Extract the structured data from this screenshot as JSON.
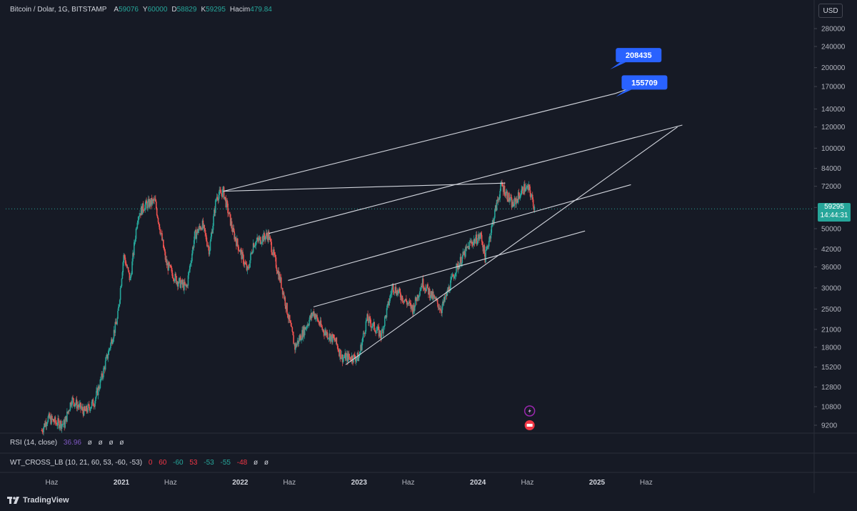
{
  "legend": {
    "symbol": "Bitcoin / Dolar, 1G, BITSTAMP",
    "open_label": "A",
    "open": "59076",
    "high_label": "Y",
    "high": "60000",
    "low_label": "D",
    "low": "58829",
    "close_label": "K",
    "close": "59295",
    "volume_label": "Hacim",
    "volume": "479.84"
  },
  "currency": "USD",
  "last_price": {
    "value": "59295",
    "countdown": "14:44:31"
  },
  "indicators": {
    "rsi": {
      "label": "RSI (14, close)",
      "value": "36.96",
      "extras": [
        "ø",
        "ø",
        "ø",
        "ø"
      ]
    },
    "wt": {
      "label": "WT_CROSS_LB (10, 21, 60, 53, -60, -53)",
      "values": [
        "0",
        "60",
        "-60",
        "53",
        "-53",
        "-55",
        "-48",
        "ø",
        "ø"
      ],
      "colors": [
        "#f23645",
        "#f23645",
        "#26a69a",
        "#f23645",
        "#26a69a",
        "#26a69a",
        "#f23645",
        "#d1d4dc",
        "#d1d4dc"
      ]
    }
  },
  "brand": "TradingView",
  "colors": {
    "up": "#26a69a",
    "down": "#ef5350",
    "line": "#d1d4dc",
    "callout": "#2962ff",
    "background": "#161a25"
  },
  "chart_data": {
    "type": "candlestick",
    "y_scale": "log",
    "y_ticks": [
      280000,
      240000,
      200000,
      170000,
      140000,
      120000,
      100000,
      84000,
      72000,
      60000,
      50000,
      42000,
      36000,
      30000,
      25000,
      21000,
      18000,
      15200,
      12800,
      10800,
      9200
    ],
    "x_ticks": [
      {
        "label": "Haz",
        "date": "2020-06"
      },
      {
        "label": "2021",
        "date": "2021-01"
      },
      {
        "label": "Haz",
        "date": "2021-06"
      },
      {
        "label": "2022",
        "date": "2022-01"
      },
      {
        "label": "Haz",
        "date": "2022-06"
      },
      {
        "label": "2023",
        "date": "2023-01"
      },
      {
        "label": "Haz",
        "date": "2023-06"
      },
      {
        "label": "2024",
        "date": "2024-01"
      },
      {
        "label": "Haz",
        "date": "2024-06"
      },
      {
        "label": "2025",
        "date": "2025-01"
      },
      {
        "label": "Haz",
        "date": "2025-06"
      }
    ],
    "price_path": [
      [
        "2020-05-01",
        8800
      ],
      [
        "2020-05-20",
        9800
      ],
      [
        "2020-06-15",
        9400
      ],
      [
        "2020-07-10",
        9300
      ],
      [
        "2020-08-01",
        11500
      ],
      [
        "2020-09-10",
        10300
      ],
      [
        "2020-10-10",
        11300
      ],
      [
        "2020-11-01",
        13800
      ],
      [
        "2020-12-01",
        19000
      ],
      [
        "2020-12-20",
        23000
      ],
      [
        "2021-01-08",
        40000
      ],
      [
        "2021-01-28",
        32000
      ],
      [
        "2021-02-20",
        56000
      ],
      [
        "2021-03-13",
        61000
      ],
      [
        "2021-04-14",
        63500
      ],
      [
        "2021-05-19",
        37000
      ],
      [
        "2021-06-20",
        32000
      ],
      [
        "2021-07-20",
        30000
      ],
      [
        "2021-08-14",
        47000
      ],
      [
        "2021-09-06",
        52000
      ],
      [
        "2021-09-28",
        41500
      ],
      [
        "2021-10-20",
        66000
      ],
      [
        "2021-11-10",
        68800
      ],
      [
        "2021-12-10",
        48500
      ],
      [
        "2022-01-24",
        34500
      ],
      [
        "2022-02-10",
        44000
      ],
      [
        "2022-03-28",
        47500
      ],
      [
        "2022-05-10",
        30000
      ],
      [
        "2022-06-18",
        18000
      ],
      [
        "2022-08-14",
        24400
      ],
      [
        "2022-09-10",
        21000
      ],
      [
        "2022-10-20",
        19000
      ],
      [
        "2022-11-09",
        16500
      ],
      [
        "2022-12-31",
        16500
      ],
      [
        "2023-01-25",
        23000
      ],
      [
        "2023-03-10",
        20000
      ],
      [
        "2023-04-14",
        30500
      ],
      [
        "2023-06-15",
        25000
      ],
      [
        "2023-07-14",
        31500
      ],
      [
        "2023-09-11",
        25000
      ],
      [
        "2023-10-24",
        35000
      ],
      [
        "2023-12-08",
        44000
      ],
      [
        "2024-01-11",
        47000
      ],
      [
        "2024-01-23",
        39000
      ],
      [
        "2024-02-28",
        62000
      ],
      [
        "2024-03-14",
        73000
      ],
      [
        "2024-04-17",
        61000
      ],
      [
        "2024-05-21",
        71000
      ],
      [
        "2024-06-07",
        70000
      ],
      [
        "2024-06-24",
        59295
      ]
    ],
    "trendlines": [
      {
        "from": [
          "2021-11-10",
          69000
        ],
        "to": [
          "2025-02-25",
          160000
        ]
      },
      {
        "from": [
          "2021-11-10",
          69000
        ],
        "to": [
          "2024-03-25",
          74000
        ]
      },
      {
        "from": [
          "2022-03-30",
          48000
        ],
        "to": [
          "2025-09-20",
          122000
        ]
      },
      {
        "from": [
          "2022-05-28",
          32000
        ],
        "to": [
          "2025-04-15",
          73000
        ]
      },
      {
        "from": [
          "2022-08-14",
          25500
        ],
        "to": [
          "2024-11-25",
          49000
        ]
      },
      {
        "from": [
          "2022-11-21",
          15500
        ],
        "to": [
          "2025-09-05",
          120000
        ]
      },
      {
        "from": [
          "2025-02-25",
          160000
        ],
        "to": [
          "2025-05-20",
          174000
        ]
      }
    ],
    "callouts": [
      {
        "label": "208435",
        "at": [
          "2025-02-10",
          197000
        ]
      },
      {
        "label": "155709",
        "at": [
          "2025-02-28",
          155709
        ]
      }
    ],
    "events": [
      {
        "date": "2024-06-08",
        "kind": "lightning"
      },
      {
        "date": "2024-06-08",
        "kind": "flag"
      }
    ]
  }
}
